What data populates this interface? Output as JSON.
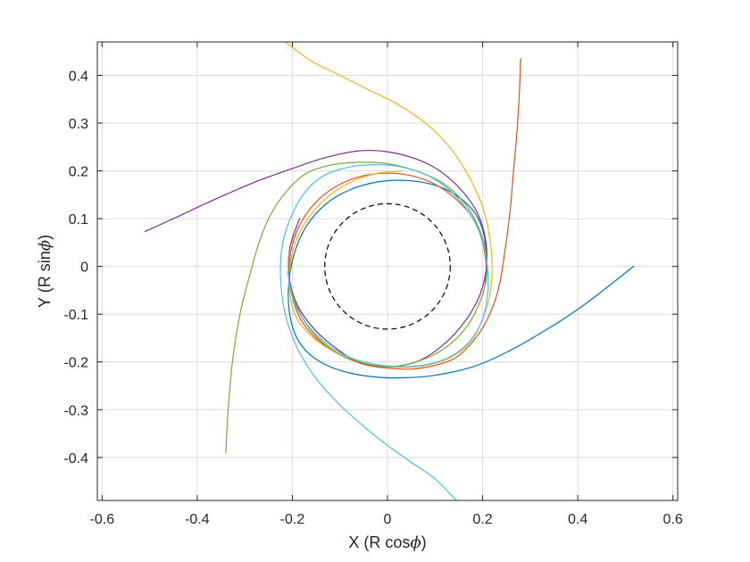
{
  "chart_data": {
    "type": "line",
    "xlabel_main": "X (R cos",
    "xlabel_sym": "ϕ",
    "xlabel_end": ")",
    "ylabel_main": "Y (R sin",
    "ylabel_sym": "ϕ",
    "ylabel_end": ")",
    "xlim": [
      -0.61,
      0.61
    ],
    "ylim": [
      -0.49,
      0.47
    ],
    "xticks": [
      -0.6,
      -0.4,
      -0.2,
      0,
      0.2,
      0.4,
      0.6
    ],
    "xtick_labels": [
      "-0.6",
      "-0.4",
      "-0.2",
      "0",
      "0.2",
      "0.4",
      "0.6"
    ],
    "yticks": [
      -0.4,
      -0.3,
      -0.2,
      -0.1,
      0,
      0.1,
      0.2,
      0.3,
      0.4
    ],
    "ytick_labels": [
      "-0.4",
      "-0.3",
      "-0.2",
      "-0.1",
      "0",
      "0.1",
      "0.2",
      "0.3",
      "0.4"
    ],
    "grid": true,
    "horizon_radius": 0.132,
    "series": [
      {
        "color": "#0072bd",
        "x": [
          0.517,
          0.46,
          0.4,
          0.33,
          0.25,
          0.18,
          0.1,
          0.04,
          -0.02,
          -0.08,
          -0.13,
          -0.17,
          -0.195,
          -0.207,
          -0.207,
          -0.195,
          -0.17,
          -0.13,
          -0.08,
          -0.02,
          0.04,
          0.1,
          0.15,
          0.185,
          0.203,
          0.208,
          0.205
        ],
        "y": [
          0.0,
          -0.045,
          -0.09,
          -0.135,
          -0.18,
          -0.21,
          -0.228,
          -0.233,
          -0.232,
          -0.223,
          -0.206,
          -0.178,
          -0.14,
          -0.09,
          -0.03,
          0.03,
          0.085,
          0.13,
          0.16,
          0.177,
          0.18,
          0.17,
          0.145,
          0.11,
          0.065,
          0.01,
          -0.04
        ]
      },
      {
        "color": "#d95319",
        "x": [
          0.28,
          0.277,
          0.272,
          0.265,
          0.258,
          0.248,
          0.235,
          0.215,
          0.185,
          0.145,
          0.1,
          0.05,
          0.0,
          -0.05,
          -0.1,
          -0.145,
          -0.18,
          -0.2,
          -0.207,
          -0.2,
          -0.18,
          -0.145,
          -0.1,
          -0.05,
          0.0,
          0.05,
          0.1,
          0.145,
          0.18,
          0.2,
          0.208
        ],
        "y": [
          0.435,
          0.36,
          0.28,
          0.2,
          0.12,
          0.04,
          -0.04,
          -0.1,
          -0.15,
          -0.19,
          -0.207,
          -0.215,
          -0.213,
          -0.205,
          -0.185,
          -0.155,
          -0.115,
          -0.065,
          -0.01,
          0.045,
          0.095,
          0.14,
          0.172,
          0.19,
          0.195,
          0.19,
          0.172,
          0.14,
          0.1,
          0.05,
          0.0
        ]
      },
      {
        "color": "#edb120",
        "x": [
          -0.215,
          -0.16,
          -0.1,
          -0.04,
          0.02,
          0.08,
          0.13,
          0.17,
          0.2,
          0.215,
          0.22,
          0.215,
          0.2,
          0.18,
          0.15,
          0.11,
          0.06,
          0.0,
          -0.06,
          -0.11,
          -0.155,
          -0.19,
          -0.205,
          -0.205,
          -0.19,
          -0.16,
          -0.12,
          -0.07,
          -0.02,
          0.03
        ],
        "y": [
          0.47,
          0.43,
          0.4,
          0.37,
          0.34,
          0.3,
          0.25,
          0.19,
          0.125,
          0.06,
          -0.0,
          -0.06,
          -0.11,
          -0.15,
          -0.18,
          -0.2,
          -0.21,
          -0.21,
          -0.2,
          -0.18,
          -0.15,
          -0.11,
          -0.06,
          0.0,
          0.06,
          0.11,
          0.15,
          0.18,
          0.195,
          0.2
        ]
      },
      {
        "color": "#7e2f8e",
        "x": [
          -0.51,
          -0.45,
          -0.39,
          -0.33,
          -0.27,
          -0.2,
          -0.13,
          -0.06,
          0.0,
          0.06,
          0.11,
          0.155,
          0.19,
          0.207,
          0.207,
          0.19,
          0.155,
          0.11,
          0.06,
          0.0,
          -0.06,
          -0.11,
          -0.155,
          -0.19,
          -0.207,
          -0.205,
          -0.185
        ],
        "y": [
          0.073,
          0.1,
          0.128,
          0.155,
          0.18,
          0.205,
          0.228,
          0.242,
          0.24,
          0.225,
          0.2,
          0.16,
          0.11,
          0.05,
          -0.01,
          -0.07,
          -0.125,
          -0.17,
          -0.2,
          -0.21,
          -0.2,
          -0.17,
          -0.13,
          -0.08,
          -0.02,
          0.04,
          0.1
        ]
      },
      {
        "color": "#77ac30",
        "x": [
          -0.34,
          -0.335,
          -0.326,
          -0.31,
          -0.29,
          -0.27,
          -0.245,
          -0.21,
          -0.17,
          -0.12,
          -0.06,
          0.0,
          0.06,
          0.115,
          0.16,
          0.19,
          0.207,
          0.207,
          0.19,
          0.16,
          0.115,
          0.06,
          0.0,
          -0.06,
          -0.115,
          -0.16,
          -0.19,
          -0.207,
          -0.207
        ],
        "y": [
          -0.39,
          -0.3,
          -0.2,
          -0.1,
          -0.02,
          0.05,
          0.11,
          0.16,
          0.195,
          0.212,
          0.218,
          0.215,
          0.2,
          0.175,
          0.135,
          0.085,
          0.03,
          -0.03,
          -0.085,
          -0.135,
          -0.175,
          -0.2,
          -0.21,
          -0.2,
          -0.175,
          -0.135,
          -0.085,
          -0.03,
          0.03
        ]
      },
      {
        "color": "#4dbeee",
        "x": [
          0.145,
          0.1,
          0.05,
          0.0,
          -0.05,
          -0.1,
          -0.15,
          -0.19,
          -0.215,
          -0.225,
          -0.22,
          -0.2,
          -0.17,
          -0.13,
          -0.08,
          -0.025,
          0.03,
          0.085,
          0.13,
          0.17,
          0.198,
          0.21,
          0.21,
          0.198,
          0.17,
          0.13,
          0.085,
          0.03,
          -0.025,
          -0.08,
          -0.13,
          -0.17,
          -0.198,
          -0.21
        ],
        "y": [
          -0.49,
          -0.445,
          -0.41,
          -0.375,
          -0.335,
          -0.29,
          -0.235,
          -0.17,
          -0.1,
          -0.02,
          0.05,
          0.11,
          0.16,
          0.192,
          0.208,
          0.213,
          0.208,
          0.19,
          0.16,
          0.115,
          0.06,
          0.0,
          -0.06,
          -0.115,
          -0.16,
          -0.19,
          -0.205,
          -0.21,
          -0.205,
          -0.19,
          -0.16,
          -0.12,
          -0.07,
          -0.01
        ]
      }
    ]
  }
}
